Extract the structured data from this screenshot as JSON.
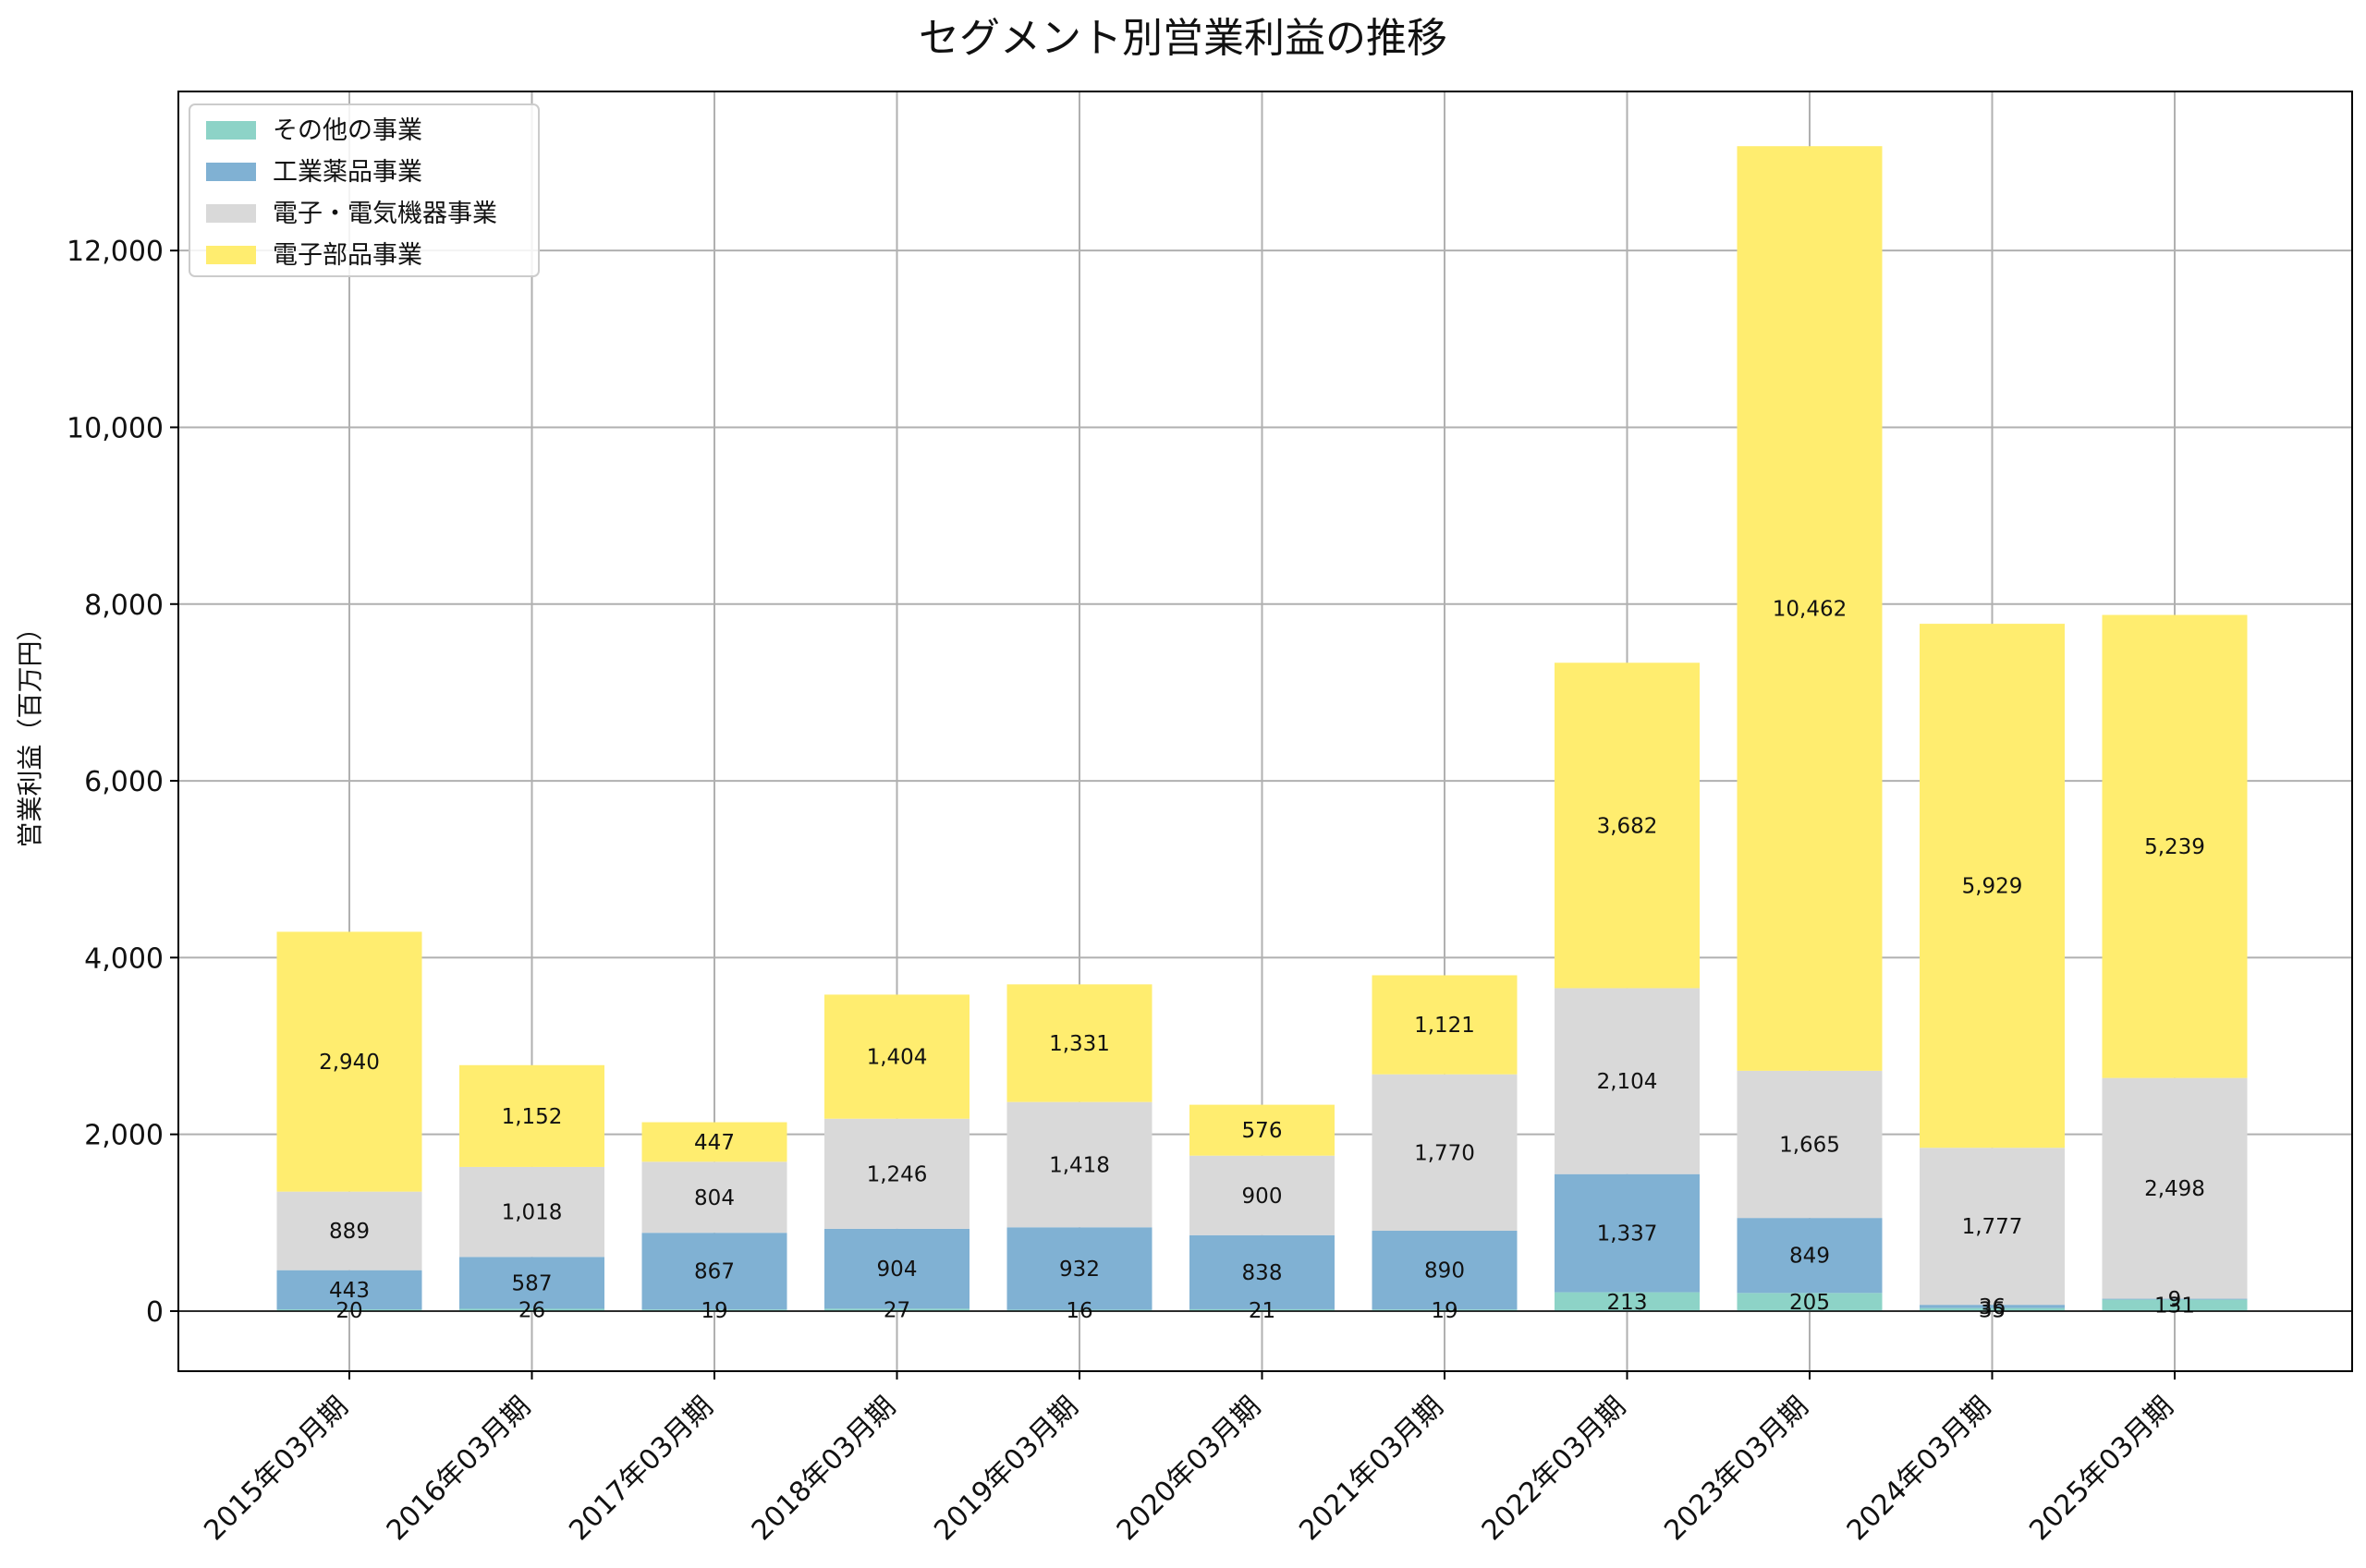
{
  "chart_data": {
    "type": "bar",
    "stacked": true,
    "title": "セグメント別営業利益の推移",
    "xlabel": "",
    "ylabel": "営業利益（百万円）",
    "ylim": [
      -680,
      13800
    ],
    "yticks": [
      0,
      2000,
      4000,
      6000,
      8000,
      10000,
      12000
    ],
    "ytick_labels": [
      "0",
      "2,000",
      "4,000",
      "6,000",
      "8,000",
      "10,000",
      "12,000"
    ],
    "grid": true,
    "legend_position": "top-left",
    "categories": [
      "2015年03月期",
      "2016年03月期",
      "2017年03月期",
      "2018年03月期",
      "2019年03月期",
      "2020年03月期",
      "2021年03月期",
      "2022年03月期",
      "2023年03月期",
      "2024年03月期",
      "2025年03月期"
    ],
    "series": [
      {
        "name": "その他の事業",
        "color": "#8dd3c7",
        "values": [
          20,
          26,
          19,
          27,
          16,
          21,
          19,
          213,
          205,
          35,
          131
        ],
        "labels": [
          "20",
          "26",
          "19",
          "27",
          "16",
          "21",
          "19",
          "213",
          "205",
          "35",
          "131"
        ]
      },
      {
        "name": "工業薬品事業",
        "color": "#80b1d3",
        "values": [
          443,
          587,
          867,
          904,
          932,
          838,
          890,
          1337,
          849,
          36,
          9
        ],
        "labels": [
          "443",
          "587",
          "867",
          "904",
          "932",
          "838",
          "890",
          "1,337",
          "849",
          "36",
          "9"
        ]
      },
      {
        "name": "電子・電気機器事業",
        "color": "#d9d9d9",
        "values": [
          889,
          1018,
          804,
          1246,
          1418,
          900,
          1770,
          2104,
          1665,
          1777,
          2498
        ],
        "labels": [
          "889",
          "1,018",
          "804",
          "1,246",
          "1,418",
          "900",
          "1,770",
          "2,104",
          "1,665",
          "1,777",
          "2,498"
        ]
      },
      {
        "name": "電子部品事業",
        "color": "#ffed6f",
        "values": [
          2940,
          1152,
          447,
          1404,
          1331,
          576,
          1121,
          3682,
          10462,
          5929,
          5239
        ],
        "labels": [
          "2,940",
          "1,152",
          "447",
          "1,404",
          "1,331",
          "576",
          "1,121",
          "3,682",
          "10,462",
          "5,929",
          "5,239"
        ]
      }
    ]
  }
}
